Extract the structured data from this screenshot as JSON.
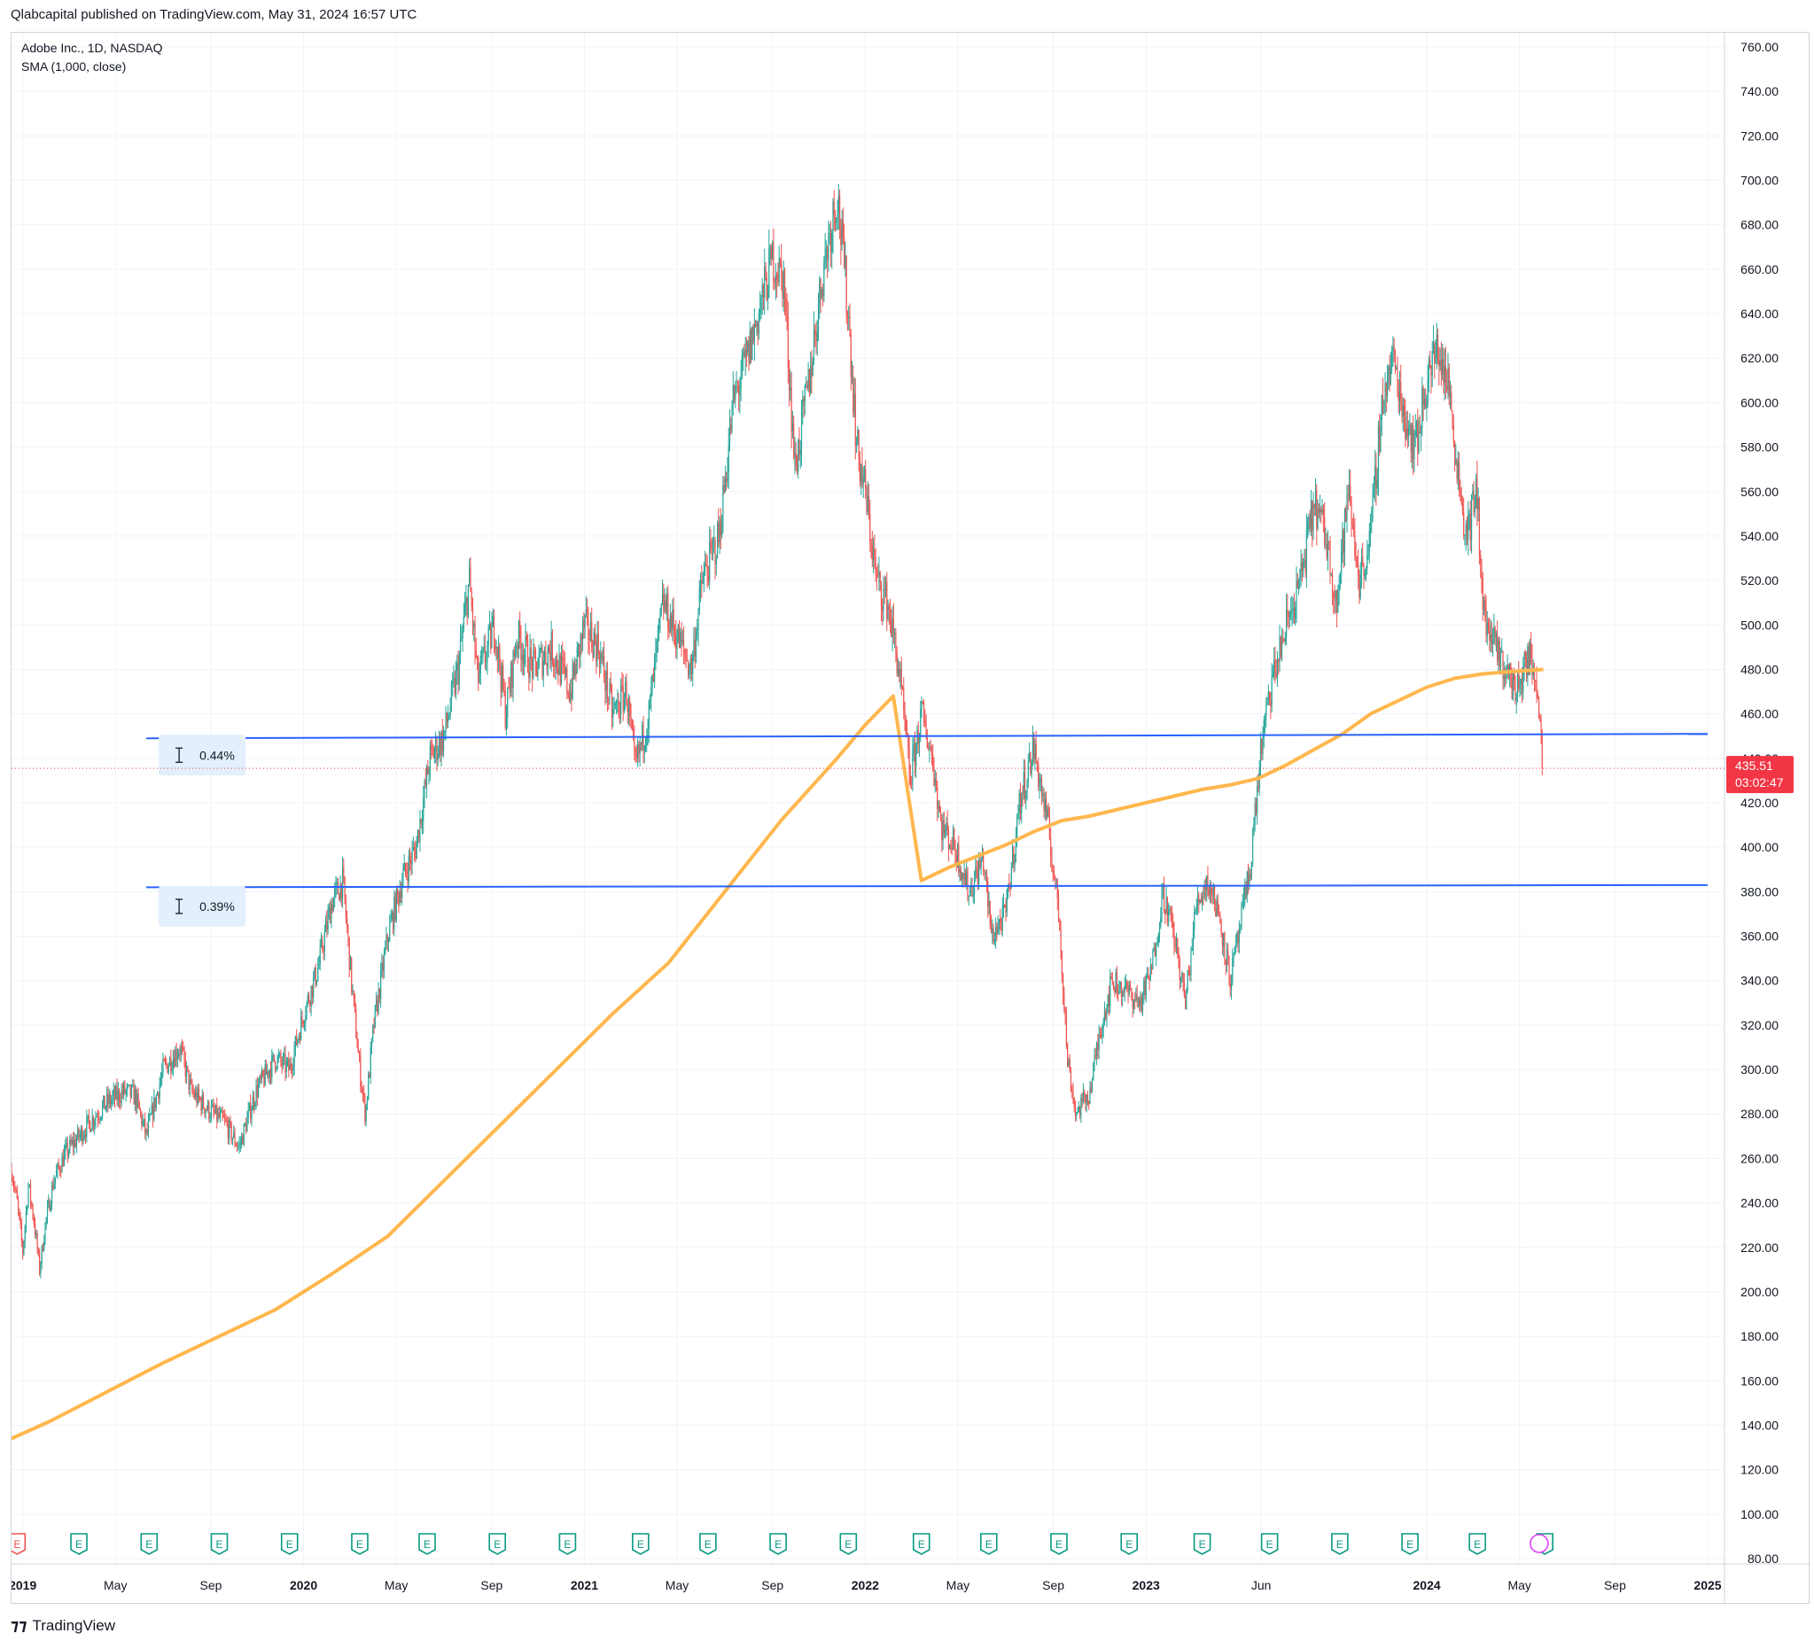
{
  "header": {
    "publisher_line": "Qlabcapital published on TradingView.com, May 31, 2024 16:57 UTC"
  },
  "legend": {
    "symbol_line": "Adobe Inc., 1D, NASDAQ",
    "indicator_line": "SMA (1,000, close)"
  },
  "footer": {
    "brand": "TradingView",
    "logo_icon": "tradingview-logo-icon"
  },
  "colors": {
    "up": "#26a69a",
    "down": "#ef5350",
    "sma": "#ffb74d",
    "hline": "#2962ff",
    "grid": "#f0f3fa",
    "price_tag": "#f23645",
    "earnings": "#089981",
    "dividend": "#e040fb"
  },
  "chart_data": {
    "type": "candlestick",
    "title": "Adobe Inc., 1D, NASDAQ",
    "ylim": [
      80,
      760
    ],
    "xlim": [
      2018.96,
      2025.06
    ],
    "grid": true,
    "y_ticks": [
      "760.00",
      "740.00",
      "720.00",
      "700.00",
      "680.00",
      "660.00",
      "640.00",
      "620.00",
      "600.00",
      "580.00",
      "560.00",
      "540.00",
      "520.00",
      "500.00",
      "480.00",
      "460.00",
      "440.00",
      "420.00",
      "400.00",
      "380.00",
      "360.00",
      "340.00",
      "320.00",
      "300.00",
      "280.00",
      "260.00",
      "240.00",
      "220.00",
      "200.00",
      "180.00",
      "160.00",
      "140.00",
      "120.00",
      "100.00",
      "80.00"
    ],
    "x_ticks": [
      {
        "label": "2019",
        "t": 2019.0,
        "bold": true
      },
      {
        "label": "May",
        "t": 2019.33,
        "bold": false
      },
      {
        "label": "Sep",
        "t": 2019.67,
        "bold": false
      },
      {
        "label": "2020",
        "t": 2020.0,
        "bold": true
      },
      {
        "label": "May",
        "t": 2020.33,
        "bold": false
      },
      {
        "label": "Sep",
        "t": 2020.67,
        "bold": false
      },
      {
        "label": "2021",
        "t": 2021.0,
        "bold": true
      },
      {
        "label": "May",
        "t": 2021.33,
        "bold": false
      },
      {
        "label": "Sep",
        "t": 2021.67,
        "bold": false
      },
      {
        "label": "2022",
        "t": 2022.0,
        "bold": true
      },
      {
        "label": "May",
        "t": 2022.33,
        "bold": false
      },
      {
        "label": "Sep",
        "t": 2022.67,
        "bold": false
      },
      {
        "label": "2023",
        "t": 2023.0,
        "bold": true
      },
      {
        "label": "Jun",
        "t": 2023.41,
        "bold": false
      },
      {
        "label": "2024",
        "t": 2024.0,
        "bold": true
      },
      {
        "label": "May",
        "t": 2024.33,
        "bold": false
      },
      {
        "label": "Sep",
        "t": 2024.67,
        "bold": false
      },
      {
        "label": "2025",
        "t": 2025.0,
        "bold": true
      }
    ],
    "price_path": [
      [
        2018.96,
        255
      ],
      [
        2018.98,
        240
      ],
      [
        2019.0,
        218
      ],
      [
        2019.02,
        248
      ],
      [
        2019.04,
        232
      ],
      [
        2019.06,
        210
      ],
      [
        2019.08,
        230
      ],
      [
        2019.11,
        250
      ],
      [
        2019.15,
        262
      ],
      [
        2019.2,
        270
      ],
      [
        2019.25,
        278
      ],
      [
        2019.3,
        285
      ],
      [
        2019.36,
        290
      ],
      [
        2019.4,
        288
      ],
      [
        2019.44,
        270
      ],
      [
        2019.5,
        300
      ],
      [
        2019.56,
        310
      ],
      [
        2019.6,
        290
      ],
      [
        2019.66,
        282
      ],
      [
        2019.72,
        276
      ],
      [
        2019.77,
        265
      ],
      [
        2019.83,
        290
      ],
      [
        2019.9,
        305
      ],
      [
        2019.95,
        300
      ],
      [
        2020.0,
        325
      ],
      [
        2020.05,
        345
      ],
      [
        2020.1,
        375
      ],
      [
        2020.14,
        385
      ],
      [
        2020.17,
        340
      ],
      [
        2020.2,
        300
      ],
      [
        2020.22,
        280
      ],
      [
        2020.25,
        320
      ],
      [
        2020.3,
        360
      ],
      [
        2020.35,
        385
      ],
      [
        2020.4,
        400
      ],
      [
        2020.45,
        440
      ],
      [
        2020.5,
        450
      ],
      [
        2020.55,
        480
      ],
      [
        2020.59,
        520
      ],
      [
        2020.62,
        475
      ],
      [
        2020.68,
        500
      ],
      [
        2020.72,
        460
      ],
      [
        2020.76,
        495
      ],
      [
        2020.82,
        480
      ],
      [
        2020.88,
        490
      ],
      [
        2020.95,
        470
      ],
      [
        2021.0,
        500
      ],
      [
        2021.05,
        490
      ],
      [
        2021.1,
        460
      ],
      [
        2021.15,
        470
      ],
      [
        2021.18,
        435
      ],
      [
        2021.23,
        460
      ],
      [
        2021.28,
        510
      ],
      [
        2021.33,
        495
      ],
      [
        2021.38,
        480
      ],
      [
        2021.42,
        520
      ],
      [
        2021.48,
        540
      ],
      [
        2021.53,
        600
      ],
      [
        2021.58,
        620
      ],
      [
        2021.62,
        640
      ],
      [
        2021.67,
        665
      ],
      [
        2021.71,
        655
      ],
      [
        2021.75,
        570
      ],
      [
        2021.8,
        610
      ],
      [
        2021.85,
        660
      ],
      [
        2021.9,
        695
      ],
      [
        2021.94,
        640
      ],
      [
        2021.97,
        580
      ],
      [
        2022.0,
        560
      ],
      [
        2022.04,
        520
      ],
      [
        2022.08,
        510
      ],
      [
        2022.12,
        480
      ],
      [
        2022.16,
        430
      ],
      [
        2022.2,
        460
      ],
      [
        2022.24,
        440
      ],
      [
        2022.27,
        410
      ],
      [
        2022.32,
        400
      ],
      [
        2022.37,
        380
      ],
      [
        2022.42,
        395
      ],
      [
        2022.45,
        360
      ],
      [
        2022.5,
        370
      ],
      [
        2022.55,
        420
      ],
      [
        2022.6,
        445
      ],
      [
        2022.65,
        410
      ],
      [
        2022.69,
        370
      ],
      [
        2022.72,
        305
      ],
      [
        2022.75,
        280
      ],
      [
        2022.8,
        290
      ],
      [
        2022.84,
        320
      ],
      [
        2022.88,
        340
      ],
      [
        2022.93,
        335
      ],
      [
        2022.98,
        330
      ],
      [
        2023.02,
        345
      ],
      [
        2023.06,
        380
      ],
      [
        2023.1,
        360
      ],
      [
        2023.14,
        330
      ],
      [
        2023.18,
        375
      ],
      [
        2023.22,
        385
      ],
      [
        2023.26,
        370
      ],
      [
        2023.3,
        340
      ],
      [
        2023.33,
        360
      ],
      [
        2023.37,
        390
      ],
      [
        2023.41,
        445
      ],
      [
        2023.45,
        475
      ],
      [
        2023.5,
        500
      ],
      [
        2023.55,
        520
      ],
      [
        2023.6,
        555
      ],
      [
        2023.64,
        540
      ],
      [
        2023.68,
        510
      ],
      [
        2023.72,
        560
      ],
      [
        2023.76,
        520
      ],
      [
        2023.8,
        540
      ],
      [
        2023.84,
        600
      ],
      [
        2023.88,
        620
      ],
      [
        2023.92,
        595
      ],
      [
        2023.96,
        580
      ],
      [
        2024.0,
        610
      ],
      [
        2024.04,
        625
      ],
      [
        2024.08,
        605
      ],
      [
        2024.11,
        570
      ],
      [
        2024.14,
        540
      ],
      [
        2024.18,
        560
      ],
      [
        2024.2,
        505
      ],
      [
        2024.24,
        490
      ],
      [
        2024.28,
        480
      ],
      [
        2024.32,
        470
      ],
      [
        2024.36,
        485
      ],
      [
        2024.39,
        478
      ],
      [
        2024.41,
        445
      ],
      [
        2024.415,
        436
      ]
    ],
    "sma_path": [
      [
        2018.96,
        134
      ],
      [
        2019.1,
        142
      ],
      [
        2019.3,
        155
      ],
      [
        2019.5,
        168
      ],
      [
        2019.7,
        180
      ],
      [
        2019.9,
        192
      ],
      [
        2020.1,
        208
      ],
      [
        2020.3,
        225
      ],
      [
        2020.5,
        250
      ],
      [
        2020.7,
        275
      ],
      [
        2020.9,
        300
      ],
      [
        2021.1,
        325
      ],
      [
        2021.3,
        348
      ],
      [
        2021.5,
        380
      ],
      [
        2021.7,
        412
      ],
      [
        2021.9,
        440
      ],
      [
        2022.0,
        455
      ],
      [
        2022.1,
        468
      ],
      [
        2022.2,
        385
      ],
      [
        2022.3,
        391
      ],
      [
        2022.4,
        396
      ],
      [
        2022.5,
        401
      ],
      [
        2022.6,
        407
      ],
      [
        2022.7,
        412
      ],
      [
        2022.8,
        414
      ],
      [
        2022.9,
        417
      ],
      [
        2023.0,
        420
      ],
      [
        2023.1,
        423
      ],
      [
        2023.2,
        426
      ],
      [
        2023.3,
        428
      ],
      [
        2023.4,
        431
      ],
      [
        2023.5,
        437
      ],
      [
        2023.6,
        444
      ],
      [
        2023.7,
        451
      ],
      [
        2023.8,
        460
      ],
      [
        2023.9,
        466
      ],
      [
        2024.0,
        472
      ],
      [
        2024.1,
        476
      ],
      [
        2024.2,
        478
      ],
      [
        2024.3,
        479
      ],
      [
        2024.415,
        480
      ]
    ],
    "horizontal_lines": [
      {
        "t_start": 2019.44,
        "t_end": 2025.0,
        "price_start": 449,
        "price_end": 451
      },
      {
        "t_start": 2019.44,
        "t_end": 2025.0,
        "price_start": 382,
        "price_end": 383
      }
    ],
    "measure_labels": [
      {
        "text": "0.44%",
        "price": 441
      },
      {
        "text": "0.39%",
        "price": 373
      }
    ],
    "last_price": "435.51",
    "countdown": "03:02:47",
    "earnings_label": "E",
    "earnings_events": [
      2018.98,
      2019.2,
      2019.45,
      2019.7,
      2019.95,
      2020.2,
      2020.44,
      2020.69,
      2020.94,
      2021.2,
      2021.44,
      2021.69,
      2021.94,
      2022.2,
      2022.44,
      2022.69,
      2022.94,
      2023.2,
      2023.44,
      2023.69,
      2023.94,
      2024.18,
      2024.42
    ],
    "dividend_marker_t": 2024.4
  }
}
